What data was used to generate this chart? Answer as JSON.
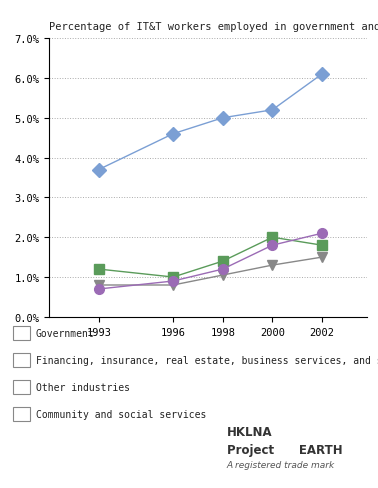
{
  "title": "Percentage of IT&T workers employed in government and industry",
  "years": [
    1993,
    1996,
    1998,
    2000,
    2002
  ],
  "series": [
    {
      "name": "Government",
      "values": [
        0.008,
        0.008,
        0.0105,
        0.013,
        0.015
      ],
      "color": "#888888",
      "marker": "v",
      "markersize": 7,
      "linewidth": 1.0,
      "linestyle": "-"
    },
    {
      "name": "Financing, insurance, real estate, business services, and software vendors",
      "values": [
        0.037,
        0.046,
        0.05,
        0.052,
        0.061
      ],
      "color": "#7B9FD4",
      "marker": "D",
      "markersize": 7,
      "linewidth": 1.0,
      "linestyle": "-"
    },
    {
      "name": "Other industries",
      "values": [
        0.012,
        0.01,
        0.014,
        0.02,
        0.018
      ],
      "color": "#5A9B5A",
      "marker": "s",
      "markersize": 7,
      "linewidth": 1.0,
      "linestyle": "-"
    },
    {
      "name": "Community and social services",
      "values": [
        0.007,
        0.009,
        0.012,
        0.018,
        0.021
      ],
      "color": "#9B6BB5",
      "marker": "o",
      "markersize": 7,
      "linewidth": 1.0,
      "linestyle": "-"
    }
  ],
  "ylim": [
    0.0,
    0.07
  ],
  "yticks": [
    0.0,
    0.01,
    0.02,
    0.03,
    0.04,
    0.05,
    0.06,
    0.07
  ],
  "ytick_labels": [
    "0.0%",
    "1.0%",
    "2.0%",
    "3.0%",
    "4.0%",
    "5.0%",
    "6.0%",
    "7.0%"
  ],
  "xticks": [
    1993,
    1996,
    1998,
    2000,
    2002
  ],
  "xlim": [
    1991.0,
    2003.8
  ],
  "background_color": "#ffffff",
  "grid_color": "#aaaaaa",
  "title_fontsize": 7.5,
  "legend_fontsize": 7.0,
  "tick_fontsize": 7.5,
  "watermark_line1": "HKLNA",
  "watermark_line2": "Project      EARTH",
  "watermark_line3": "A registered trade mark"
}
